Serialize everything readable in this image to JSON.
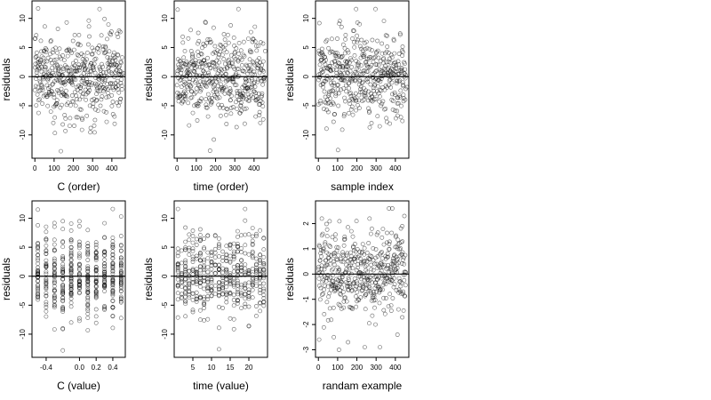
{
  "chart_data": [
    {
      "type": "scatter",
      "xlabel": "C (order)",
      "ylabel": "residuals",
      "xlim": [
        -15,
        470
      ],
      "ylim": [
        -14,
        13
      ],
      "xticks": [
        0,
        100,
        200,
        300,
        400
      ],
      "yticks": [
        -10,
        -5,
        0,
        5,
        10
      ],
      "reference_line": 0,
      "x_pattern": "sequential",
      "x_groups": [],
      "n_points": 450,
      "series": [
        {
          "points": [
            [
              0,
              6.5
            ],
            [
              7,
              7.1
            ],
            [
              17,
              11.7
            ],
            [
              42,
              2.3
            ],
            [
              83,
              -6.0
            ],
            [
              116,
              4.1
            ],
            [
              135,
              -12.8
            ],
            [
              145,
              -8.2
            ],
            [
              165,
              9.3
            ],
            [
              204,
              4.6
            ],
            [
              246,
              -7.4
            ],
            [
              281,
              8.6
            ],
            [
              336,
              11.6
            ],
            [
              362,
              9.9
            ],
            [
              387,
              2.5
            ],
            [
              416,
              3.3
            ],
            [
              432,
              6.8
            ],
            [
              446,
              -3.8
            ],
            [
              459,
              0.6
            ]
          ]
        }
      ],
      "grid": false,
      "legend": "none"
    },
    {
      "type": "scatter",
      "xlabel": "time (order)",
      "ylabel": "residuals",
      "xlim": [
        -15,
        470
      ],
      "ylim": [
        -14,
        13
      ],
      "xticks": [
        0,
        100,
        200,
        300,
        400
      ],
      "yticks": [
        -10,
        -5,
        0,
        5,
        10
      ],
      "reference_line": 0,
      "x_pattern": "sequential",
      "x_groups": [],
      "n_points": 450,
      "series": [
        {
          "points": [
            [
              3,
              11.5
            ],
            [
              32,
              -2.9
            ],
            [
              71,
              8.0
            ],
            [
              110,
              -5.0
            ],
            [
              137,
              5.6
            ],
            [
              171,
              -12.7
            ],
            [
              191,
              -10.8
            ],
            [
              224,
              4.3
            ],
            [
              257,
              -5.5
            ],
            [
              279,
              8.8
            ],
            [
              319,
              11.6
            ],
            [
              335,
              -3.4
            ],
            [
              370,
              6.5
            ],
            [
              403,
              2.0
            ],
            [
              429,
              -6.1
            ],
            [
              450,
              0.9
            ],
            [
              458,
              4.4
            ]
          ]
        }
      ],
      "grid": false,
      "legend": "none"
    },
    {
      "type": "scatter",
      "xlabel": "sample index",
      "ylabel": "residuals",
      "xlim": [
        -15,
        470
      ],
      "ylim": [
        -14,
        13
      ],
      "xticks": [
        0,
        100,
        200,
        300,
        400
      ],
      "yticks": [
        -10,
        -5,
        0,
        5,
        10
      ],
      "reference_line": 0,
      "x_pattern": "sequential",
      "x_groups": [],
      "n_points": 450,
      "series": [
        {
          "points": [
            [
              11,
              3.8
            ],
            [
              39,
              6.0
            ],
            [
              66,
              -4.8
            ],
            [
              102,
              -12.6
            ],
            [
              124,
              -9.1
            ],
            [
              140,
              6.4
            ],
            [
              196,
              11.6
            ],
            [
              214,
              9.0
            ],
            [
              236,
              -4.0
            ],
            [
              265,
              3.3
            ],
            [
              297,
              11.6
            ],
            [
              325,
              -5.0
            ],
            [
              357,
              7.0
            ],
            [
              391,
              1.9
            ],
            [
              412,
              -6.7
            ],
            [
              439,
              4.2
            ],
            [
              461,
              -1.8
            ]
          ]
        }
      ],
      "grid": false,
      "legend": "none"
    },
    {
      "type": "scatter",
      "xlabel": "C (value)",
      "ylabel": "residuals",
      "xlim": [
        -0.57,
        0.55
      ],
      "ylim": [
        -14,
        13
      ],
      "xticks": [
        -0.4,
        0.0,
        0.2,
        0.4
      ],
      "yticks": [
        -10,
        -5,
        0,
        5,
        10
      ],
      "reference_line": 0,
      "x_pattern": "grouped",
      "x_groups": [
        -0.5,
        -0.4,
        -0.3,
        -0.2,
        -0.1,
        0.0,
        0.1,
        0.2,
        0.3,
        0.4,
        0.5
      ],
      "n_points": 450,
      "series": [
        {
          "points": [
            [
              -0.5,
              11.5
            ],
            [
              -0.5,
              8.8
            ],
            [
              -0.4,
              6.2
            ],
            [
              -0.3,
              4.4
            ],
            [
              -0.2,
              9.5
            ],
            [
              -0.2,
              -12.8
            ],
            [
              -0.2,
              -9.0
            ],
            [
              -0.1,
              5.0
            ],
            [
              0.0,
              3.2
            ],
            [
              0.1,
              -4.8
            ],
            [
              0.2,
              4.1
            ],
            [
              0.3,
              -5.6
            ],
            [
              0.4,
              11.6
            ],
            [
              0.4,
              6.0
            ],
            [
              0.5,
              10.3
            ],
            [
              0.5,
              1.5
            ]
          ]
        }
      ],
      "grid": false,
      "legend": "none"
    },
    {
      "type": "scatter",
      "xlabel": "time (value)",
      "ylabel": "residuals",
      "xlim": [
        0,
        25
      ],
      "ylim": [
        -14,
        13
      ],
      "xticks": [
        5,
        10,
        15,
        20
      ],
      "yticks": [
        -10,
        -5,
        0,
        5,
        10
      ],
      "reference_line": 0,
      "x_pattern": "grouped",
      "x_groups": [
        1,
        2,
        3,
        4,
        5,
        6,
        7,
        8,
        9,
        10,
        11,
        12,
        13,
        14,
        15,
        16,
        17,
        18,
        19,
        20,
        21,
        22,
        23,
        24
      ],
      "n_points": 450,
      "series": [
        {
          "points": [
            [
              1,
              11.6
            ],
            [
              3,
              8.4
            ],
            [
              6,
              6.4
            ],
            [
              8,
              4.7
            ],
            [
              12,
              -12.6
            ],
            [
              12,
              -8.9
            ],
            [
              12,
              6.5
            ],
            [
              15,
              5.3
            ],
            [
              17,
              6.8
            ],
            [
              19,
              11.6
            ],
            [
              19,
              9.6
            ],
            [
              21,
              8.3
            ],
            [
              24,
              -3.8
            ],
            [
              24,
              6.6
            ]
          ]
        }
      ],
      "grid": false,
      "legend": "none"
    },
    {
      "type": "scatter",
      "xlabel": "randam example",
      "ylabel": "residuals",
      "xlim": [
        -15,
        470
      ],
      "ylim": [
        -3.3,
        2.9
      ],
      "xticks": [
        0,
        100,
        200,
        300,
        400
      ],
      "yticks": [
        -3,
        -2,
        -1,
        0,
        1,
        2
      ],
      "reference_line": 0,
      "x_pattern": "sequential",
      "x_groups": [],
      "n_points": 450,
      "series": [
        {
          "points": [
            [
              4,
              -2.6
            ],
            [
              18,
              2.2
            ],
            [
              46,
              1.5
            ],
            [
              80,
              -2.5
            ],
            [
              107,
              -3.0
            ],
            [
              154,
              -2.7
            ],
            [
              171,
              1.7
            ],
            [
              198,
              2.1
            ],
            [
              241,
              -2.9
            ],
            [
              266,
              2.2
            ],
            [
              297,
              -2.0
            ],
            [
              320,
              -2.9
            ],
            [
              367,
              2.6
            ],
            [
              384,
              2.6
            ],
            [
              411,
              -2.4
            ],
            [
              436,
              1.9
            ],
            [
              447,
              2.3
            ]
          ]
        }
      ],
      "grid": false,
      "legend": "none"
    }
  ]
}
